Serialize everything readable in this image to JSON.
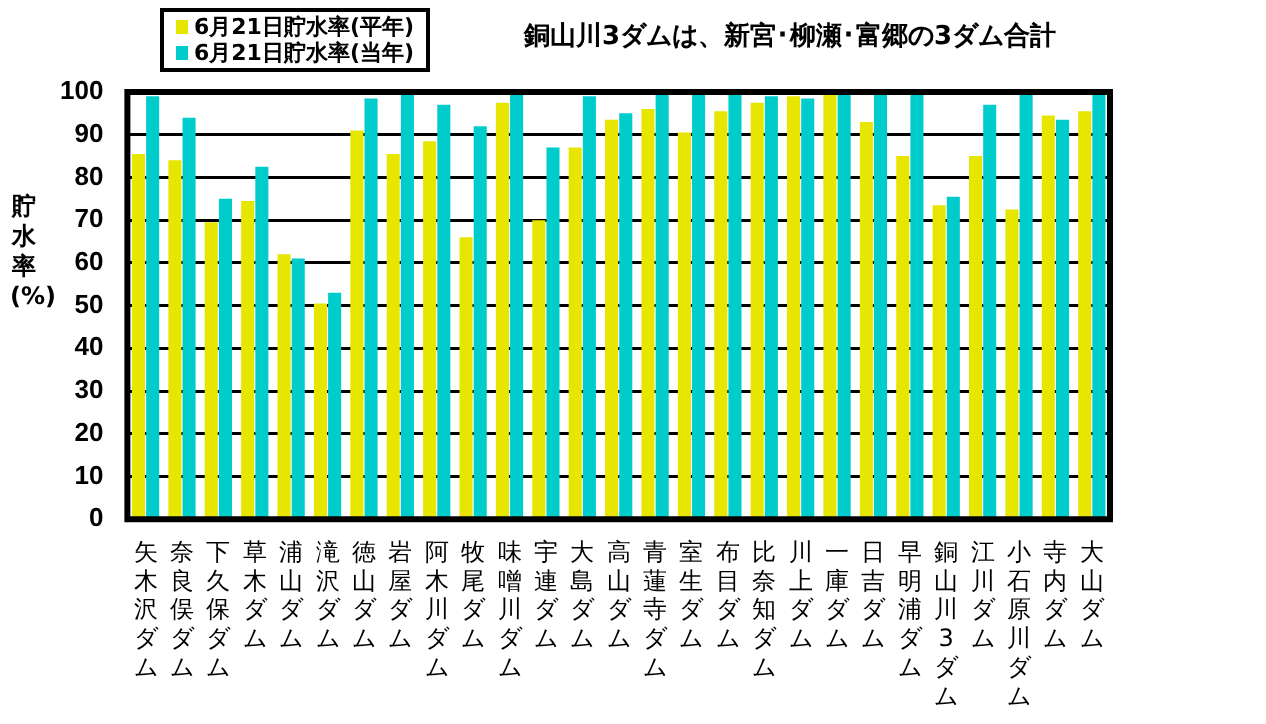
{
  "chart_data": {
    "type": "bar",
    "title": "銅山川3ダムは、新宮･柳瀬･富郷の3ダム合計",
    "ylabel": "貯水率(%)",
    "categories": [
      "矢木沢ダム",
      "奈良俣ダム",
      "下久保ダム",
      "草木ダム",
      "浦山ダム",
      "滝沢ダム",
      "徳山ダム",
      "岩屋ダム",
      "阿木川ダム",
      "牧尾ダム",
      "味噌川ダム",
      "宇連ダム",
      "大島ダム",
      "高山ダム",
      "青蓮寺ダム",
      "室生ダム",
      "布目ダム",
      "比奈知ダム",
      "川上ダム",
      "一庫ダム",
      "日吉ダム",
      "早明浦ダム",
      "銅山川3ダム",
      "江川ダム",
      "小石原川ダム",
      "寺内ダム",
      "大山ダム"
    ],
    "series": [
      {
        "name": "6月21日貯水率(平年)",
        "color": "#e6e600",
        "values": [
          85.5,
          84,
          69.5,
          74.5,
          62,
          50.5,
          91,
          85.5,
          88.5,
          66,
          97.5,
          70,
          87,
          93.5,
          96,
          90.5,
          95.5,
          97.5,
          99,
          100,
          93,
          85,
          73.5,
          85,
          72.5,
          94.5,
          95.5
        ]
      },
      {
        "name": "6月21日貯水率(当年)",
        "color": "#00cccc",
        "values": [
          99,
          94,
          75,
          82.5,
          61,
          53,
          98.5,
          100,
          97,
          92,
          99.5,
          87,
          99,
          95,
          100,
          100,
          100,
          99,
          98.5,
          100,
          100,
          100,
          75.5,
          97,
          100,
          93.5,
          100
        ]
      }
    ],
    "ylim": [
      0,
      100
    ],
    "yticks": [
      0,
      10,
      20,
      30,
      40,
      50,
      60,
      70,
      80,
      90,
      100
    ],
    "grid": "y",
    "legend": "top left"
  }
}
